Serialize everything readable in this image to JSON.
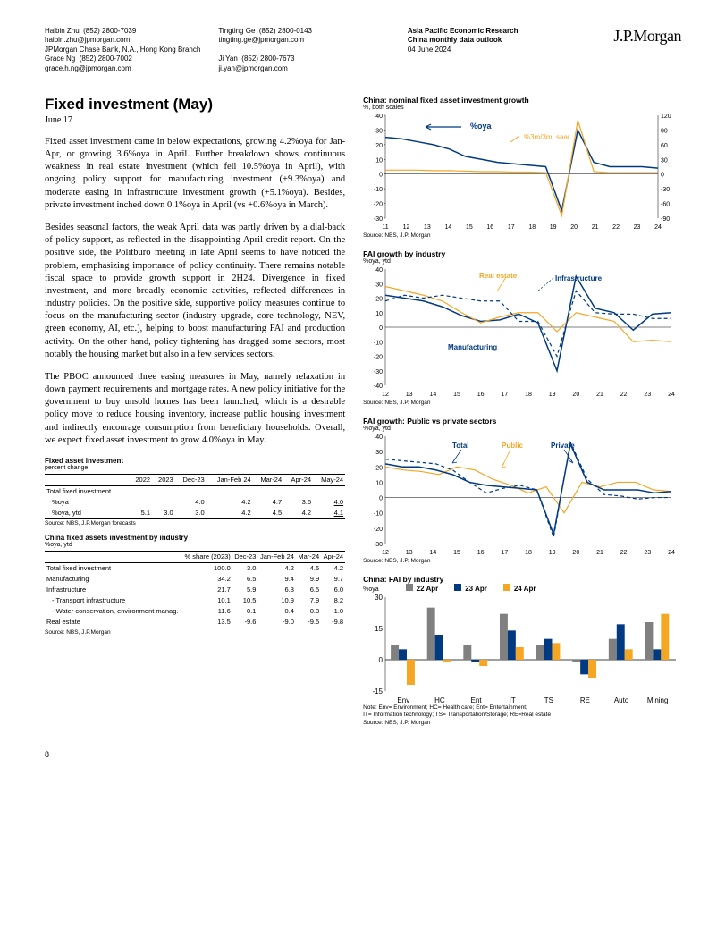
{
  "header": {
    "authors": [
      {
        "name": "Haibin Zhu",
        "phone": "(852) 2800-7039",
        "email": "haibin.zhu@jpmorgan.com",
        "affiliation": "JPMorgan Chase Bank, N.A., Hong Kong Branch"
      },
      {
        "name": "Grace Ng",
        "phone": "(852) 2800-7002",
        "email": "grace.h.ng@jpmorgan.com"
      },
      {
        "name": "Tingting Ge",
        "phone": "(852) 2800-0143",
        "email": "tingting.ge@jpmorgan.com"
      },
      {
        "name": "Ji Yan",
        "phone": "(852) 2800-7673",
        "email": "ji.yan@jpmorgan.com"
      }
    ],
    "dept": "Asia Pacific Economic Research",
    "report": "China monthly data outlook",
    "date": "04 June 2024",
    "logo": "J.P.Morgan"
  },
  "main": {
    "title": "Fixed investment (May)",
    "subdate": "June 17",
    "p1": "Fixed asset investment came in below expectations, growing 4.2%oya for Jan-Apr, or growing 3.6%oya in April. Further breakdown shows continuous weakness in real estate investment (which fell 10.5%oya in April), with ongoing policy support for manufacturing investment (+9.3%oya) and moderate easing in infrastructure investment growth (+5.1%oya). Besides, private investment inched down 0.1%oya in April (vs +0.6%oya in March).",
    "p2": "Besides seasonal factors, the weak April data was partly driven by a dial-back of policy support, as reflected in the disappointing April credit report. On the positive side, the Politburo meeting in late April seems to have noticed the problem, emphasizing importance of policy continuity. There remains notable fiscal space to provide growth support in 2H24. Divergence in fixed investment, and more broadly economic activities, reflected differences in industry policies. On the positive side, supportive policy measures continue to focus on the manufacturing sector (industry upgrade, core technology, NEV, green economy, AI, etc.), helping to boost manufacturing FAI and production activity. On the other hand, policy tightening has dragged some sectors, most notably the housing market but also in a few services sectors.",
    "p3": "The PBOC announced three easing measures in May, namely relaxation in down payment requirements and mortgage rates. A new policy initiative for the government to buy unsold homes has been launched, which is a desirable policy move to reduce housing inventory, increase public housing investment and indirectly encourage consumption from beneficiary households. Overall, we expect fixed asset investment to grow 4.0%oya in May."
  },
  "table1": {
    "title": "Fixed asset investment",
    "sub": "percent change",
    "cols": [
      "",
      "2022",
      "2023",
      "Dec-23",
      "Jan-Feb 24",
      "Mar-24",
      "Apr-24",
      "May-24"
    ],
    "rows": [
      [
        "Total fixed investment",
        "",
        "",
        "",
        "",
        "",
        "",
        ""
      ],
      [
        "%oya",
        "",
        "",
        "4.0",
        "4.2",
        "4.7",
        "3.6",
        "4.0"
      ],
      [
        "%oya, ytd",
        "5.1",
        "3.0",
        "3.0",
        "4.2",
        "4.5",
        "4.2",
        "4.1"
      ]
    ],
    "source": "Source: NBS, J.P.Morgan forecasts"
  },
  "table2": {
    "title": "China fixed assets investment by industry",
    "sub": "%oya, ytd",
    "cols": [
      "",
      "% share (2023)",
      "Dec-23",
      "Jan-Feb 24",
      "Mar-24",
      "Apr-24"
    ],
    "rows": [
      [
        "Total fixed investment",
        "100.0",
        "3.0",
        "4.2",
        "4.5",
        "4.2"
      ],
      [
        "Manufacturing",
        "34.2",
        "6.5",
        "9.4",
        "9.9",
        "9.7"
      ],
      [
        "Infrastructure",
        "21.7",
        "5.9",
        "6.3",
        "6.5",
        "6.0"
      ],
      [
        "- Transport infrastructure",
        "10.1",
        "10.5",
        "10.9",
        "7.9",
        "8.2"
      ],
      [
        "- Water conservation, environment manag.",
        "11.6",
        "0.1",
        "0.4",
        "0.3",
        "-1.0"
      ],
      [
        "Real estate",
        "13.5",
        "-9.6",
        "-9.0",
        "-9.5",
        "-9.8"
      ]
    ],
    "source": "Source: NBS, J.P.Morgan"
  },
  "charts": {
    "colors": {
      "navy": "#013a81",
      "orange": "#f5a623",
      "grid": "#999",
      "text": "#000"
    },
    "chart1": {
      "title": "China: nominal fixed asset investment growth",
      "sub": "%, both scales",
      "series1_label": "%oya",
      "series2_label": "%3m/3m, saar",
      "xlabels": [
        "11",
        "12",
        "13",
        "14",
        "15",
        "16",
        "17",
        "18",
        "19",
        "20",
        "21",
        "22",
        "23",
        "24"
      ],
      "yleft": [
        -30,
        -20,
        -10,
        0,
        10,
        20,
        30,
        40
      ],
      "yright": [
        -90,
        -60,
        -30,
        0,
        30,
        60,
        90,
        120
      ],
      "s1": [
        25,
        24,
        22,
        20,
        17,
        12,
        10,
        8,
        7,
        6,
        5,
        -25,
        30,
        8,
        5,
        5,
        5,
        4
      ],
      "s2": [
        8,
        8,
        8,
        7,
        7,
        6,
        5,
        5,
        4,
        4,
        3,
        -85,
        110,
        5,
        3,
        3,
        3,
        3
      ],
      "source": "Source: NBS, J.P. Morgan"
    },
    "chart2": {
      "title": "FAI growth by industry",
      "sub": "%oya, ytd",
      "labels": {
        "re": "Real estate",
        "inf": "Infrastructure",
        "mfg": "Manufacturing"
      },
      "xlabels": [
        "12",
        "13",
        "14",
        "15",
        "16",
        "17",
        "18",
        "19",
        "20",
        "21",
        "22",
        "23",
        "24"
      ],
      "y": [
        -40,
        -30,
        -20,
        -10,
        0,
        10,
        20,
        30,
        40
      ],
      "mfg": [
        22,
        20,
        18,
        14,
        8,
        4,
        5,
        9,
        3,
        -30,
        35,
        13,
        10,
        -2,
        9,
        10
      ],
      "re": [
        28,
        25,
        22,
        18,
        10,
        3,
        7,
        10,
        10,
        -3,
        10,
        7,
        4,
        -10,
        -9,
        -10
      ],
      "inf": [
        18,
        22,
        20,
        22,
        20,
        18,
        18,
        4,
        4,
        -20,
        25,
        10,
        9,
        9,
        6,
        6
      ],
      "source": "Source: NBS, J.P. Morgan"
    },
    "chart3": {
      "title": "FAI growth: Public vs private sectors",
      "sub": "%oya, ytd",
      "labels": {
        "total": "Total",
        "public": "Public",
        "private": "Private"
      },
      "xlabels": [
        "12",
        "13",
        "14",
        "15",
        "16",
        "17",
        "18",
        "19",
        "20",
        "21",
        "22",
        "23",
        "24"
      ],
      "y": [
        -30,
        -20,
        -10,
        0,
        10,
        20,
        30,
        40
      ],
      "total": [
        22,
        20,
        20,
        18,
        15,
        10,
        8,
        7,
        6,
        5,
        -24,
        35,
        10,
        5,
        5,
        5,
        3,
        4
      ],
      "public": [
        20,
        18,
        17,
        15,
        20,
        18,
        12,
        8,
        3,
        7,
        -10,
        10,
        7,
        10,
        10,
        5,
        4
      ],
      "private": [
        25,
        24,
        23,
        22,
        18,
        10,
        3,
        6,
        8,
        5,
        -26,
        36,
        12,
        2,
        1,
        -1,
        0,
        0
      ],
      "source": "Source: NBS, J.P. Morgan"
    },
    "chart4": {
      "title": "China: FAI by industry",
      "sub": "%oya",
      "legend": [
        "22 Apr",
        "23 Apr",
        "24 Apr"
      ],
      "legend_colors": [
        "#808080",
        "#013a81",
        "#f5a623"
      ],
      "cats": [
        "Env",
        "HC",
        "Ent",
        "IT",
        "TS",
        "RE",
        "Auto",
        "Mining"
      ],
      "y": [
        -15,
        0,
        15,
        30
      ],
      "d22": [
        7,
        25,
        7,
        22,
        7,
        -1,
        10,
        18
      ],
      "d23": [
        5,
        12,
        -1,
        14,
        10,
        -7,
        17,
        5
      ],
      "d24": [
        -12,
        -1,
        -3,
        6,
        8,
        -9,
        5,
        22
      ],
      "note1": "Note: Env= Environment; HC= Health care; Ent= Entertainment;",
      "note2": "IT= Information technology; TS= Transportation/Storage; RE=Real estate",
      "source": "Source: NBS; J.P. Morgan"
    }
  },
  "page": "8"
}
